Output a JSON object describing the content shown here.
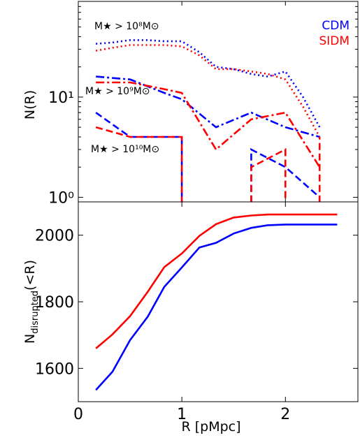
{
  "chart_data": [
    {
      "type": "line",
      "panel": "top",
      "ylabel": "N(R)",
      "yscale": "log",
      "ylim": [
        0.9,
        90
      ],
      "xlim": [
        0,
        2.7
      ],
      "yticks": [
        {
          "value": 1,
          "label": "10⁰"
        },
        {
          "value": 10,
          "label": "10¹"
        }
      ],
      "legend": {
        "placement": "top-right",
        "entries": [
          {
            "name": "CDM",
            "color": "#0000ff"
          },
          {
            "name": "SIDM",
            "color": "#ff0000"
          }
        ]
      },
      "annotations": [
        {
          "text": "M★ > 10⁸M⊙",
          "near_x": 0.2,
          "near_y": 60
        },
        {
          "text": "M★ > 10⁹M⊙",
          "near_x": 0.08,
          "near_y": 11.5
        },
        {
          "text": "M★ > 10¹⁰M⊙",
          "near_x": 0.1,
          "near_y": 2.9
        }
      ],
      "series": [
        {
          "model": "CDM",
          "mass_cut": "1e8",
          "color": "#0000ff",
          "dash": "dot",
          "x": [
            0.17,
            0.33,
            0.5,
            0.67,
            0.83,
            1.0,
            1.17,
            1.33,
            1.5,
            1.67,
            1.83,
            2.0,
            2.17,
            2.33
          ],
          "y": [
            34,
            35,
            37,
            37,
            36,
            36,
            28,
            20,
            19,
            17,
            16,
            18,
            10,
            5
          ]
        },
        {
          "model": "SIDM",
          "mass_cut": "1e8",
          "color": "#ff0000",
          "dash": "dot",
          "x": [
            0.17,
            0.33,
            0.5,
            0.67,
            0.83,
            1.0,
            1.17,
            1.33,
            1.5,
            1.67,
            1.83,
            2.0,
            2.17,
            2.33
          ],
          "y": [
            29,
            31,
            33,
            33,
            33,
            32,
            26,
            19,
            19,
            18,
            17,
            15,
            8,
            4
          ]
        },
        {
          "model": "CDM",
          "mass_cut": "1e9",
          "color": "#0000ff",
          "dash": "dashdot",
          "x": [
            0.17,
            0.5,
            0.83,
            1.0,
            1.33,
            1.67,
            2.0,
            2.33
          ],
          "y": [
            16,
            15,
            11,
            9.5,
            5,
            7,
            5,
            4
          ]
        },
        {
          "model": "SIDM",
          "mass_cut": "1e9",
          "color": "#ff0000",
          "dash": "dashdot",
          "x": [
            0.17,
            0.5,
            0.83,
            1.0,
            1.33,
            1.67,
            2.0,
            2.33
          ],
          "y": [
            14,
            14,
            12,
            11,
            3,
            6,
            7,
            2
          ]
        },
        {
          "model": "CDM",
          "mass_cut": "1e10",
          "color": "#0000ff",
          "dash": "dash",
          "x": [
            0.17,
            0.5,
            0.67,
            1.0,
            1.0,
            null,
            1.67,
            1.67,
            2.0,
            2.33,
            2.33
          ],
          "y": [
            7,
            4,
            4,
            4,
            0.7,
            null,
            0.7,
            3,
            2,
            1,
            0.7
          ]
        },
        {
          "model": "SIDM",
          "mass_cut": "1e10",
          "color": "#ff0000",
          "dash": "dash",
          "x": [
            0.17,
            0.5,
            0.67,
            1.0,
            1.0,
            null,
            1.67,
            1.67,
            2.0,
            2.0,
            null,
            2.33,
            2.33
          ],
          "y": [
            5,
            4,
            4,
            4,
            0.7,
            null,
            0.7,
            2,
            3,
            0.7,
            null,
            0.7,
            4
          ]
        }
      ]
    },
    {
      "type": "line",
      "panel": "bottom",
      "ylabel": "N_disrupted(<R)",
      "xlabel": "R [pMpc]",
      "xlim": [
        0,
        2.7
      ],
      "ylim": [
        1500,
        2100
      ],
      "xticks": [
        0,
        1,
        2
      ],
      "yticks": [
        1600,
        1800,
        2000
      ],
      "series": [
        {
          "model": "CDM",
          "color": "#0000ff",
          "dash": "solid",
          "x": [
            0.17,
            0.33,
            0.5,
            0.67,
            0.83,
            1.0,
            1.17,
            1.33,
            1.5,
            1.67,
            1.83,
            2.0,
            2.17,
            2.33,
            2.5
          ],
          "y": [
            1535,
            1590,
            1685,
            1755,
            1845,
            1903,
            1963,
            1977,
            2005,
            2022,
            2030,
            2032,
            2032,
            2032,
            2032
          ]
        },
        {
          "model": "SIDM",
          "color": "#ff0000",
          "dash": "solid",
          "x": [
            0.17,
            0.33,
            0.5,
            0.67,
            0.83,
            1.0,
            1.17,
            1.33,
            1.5,
            1.67,
            1.83,
            2.0,
            2.17,
            2.33,
            2.5
          ],
          "y": [
            1660,
            1702,
            1757,
            1830,
            1904,
            1945,
            1998,
            2033,
            2053,
            2059,
            2062,
            2062,
            2062,
            2062,
            2062
          ]
        }
      ]
    }
  ]
}
